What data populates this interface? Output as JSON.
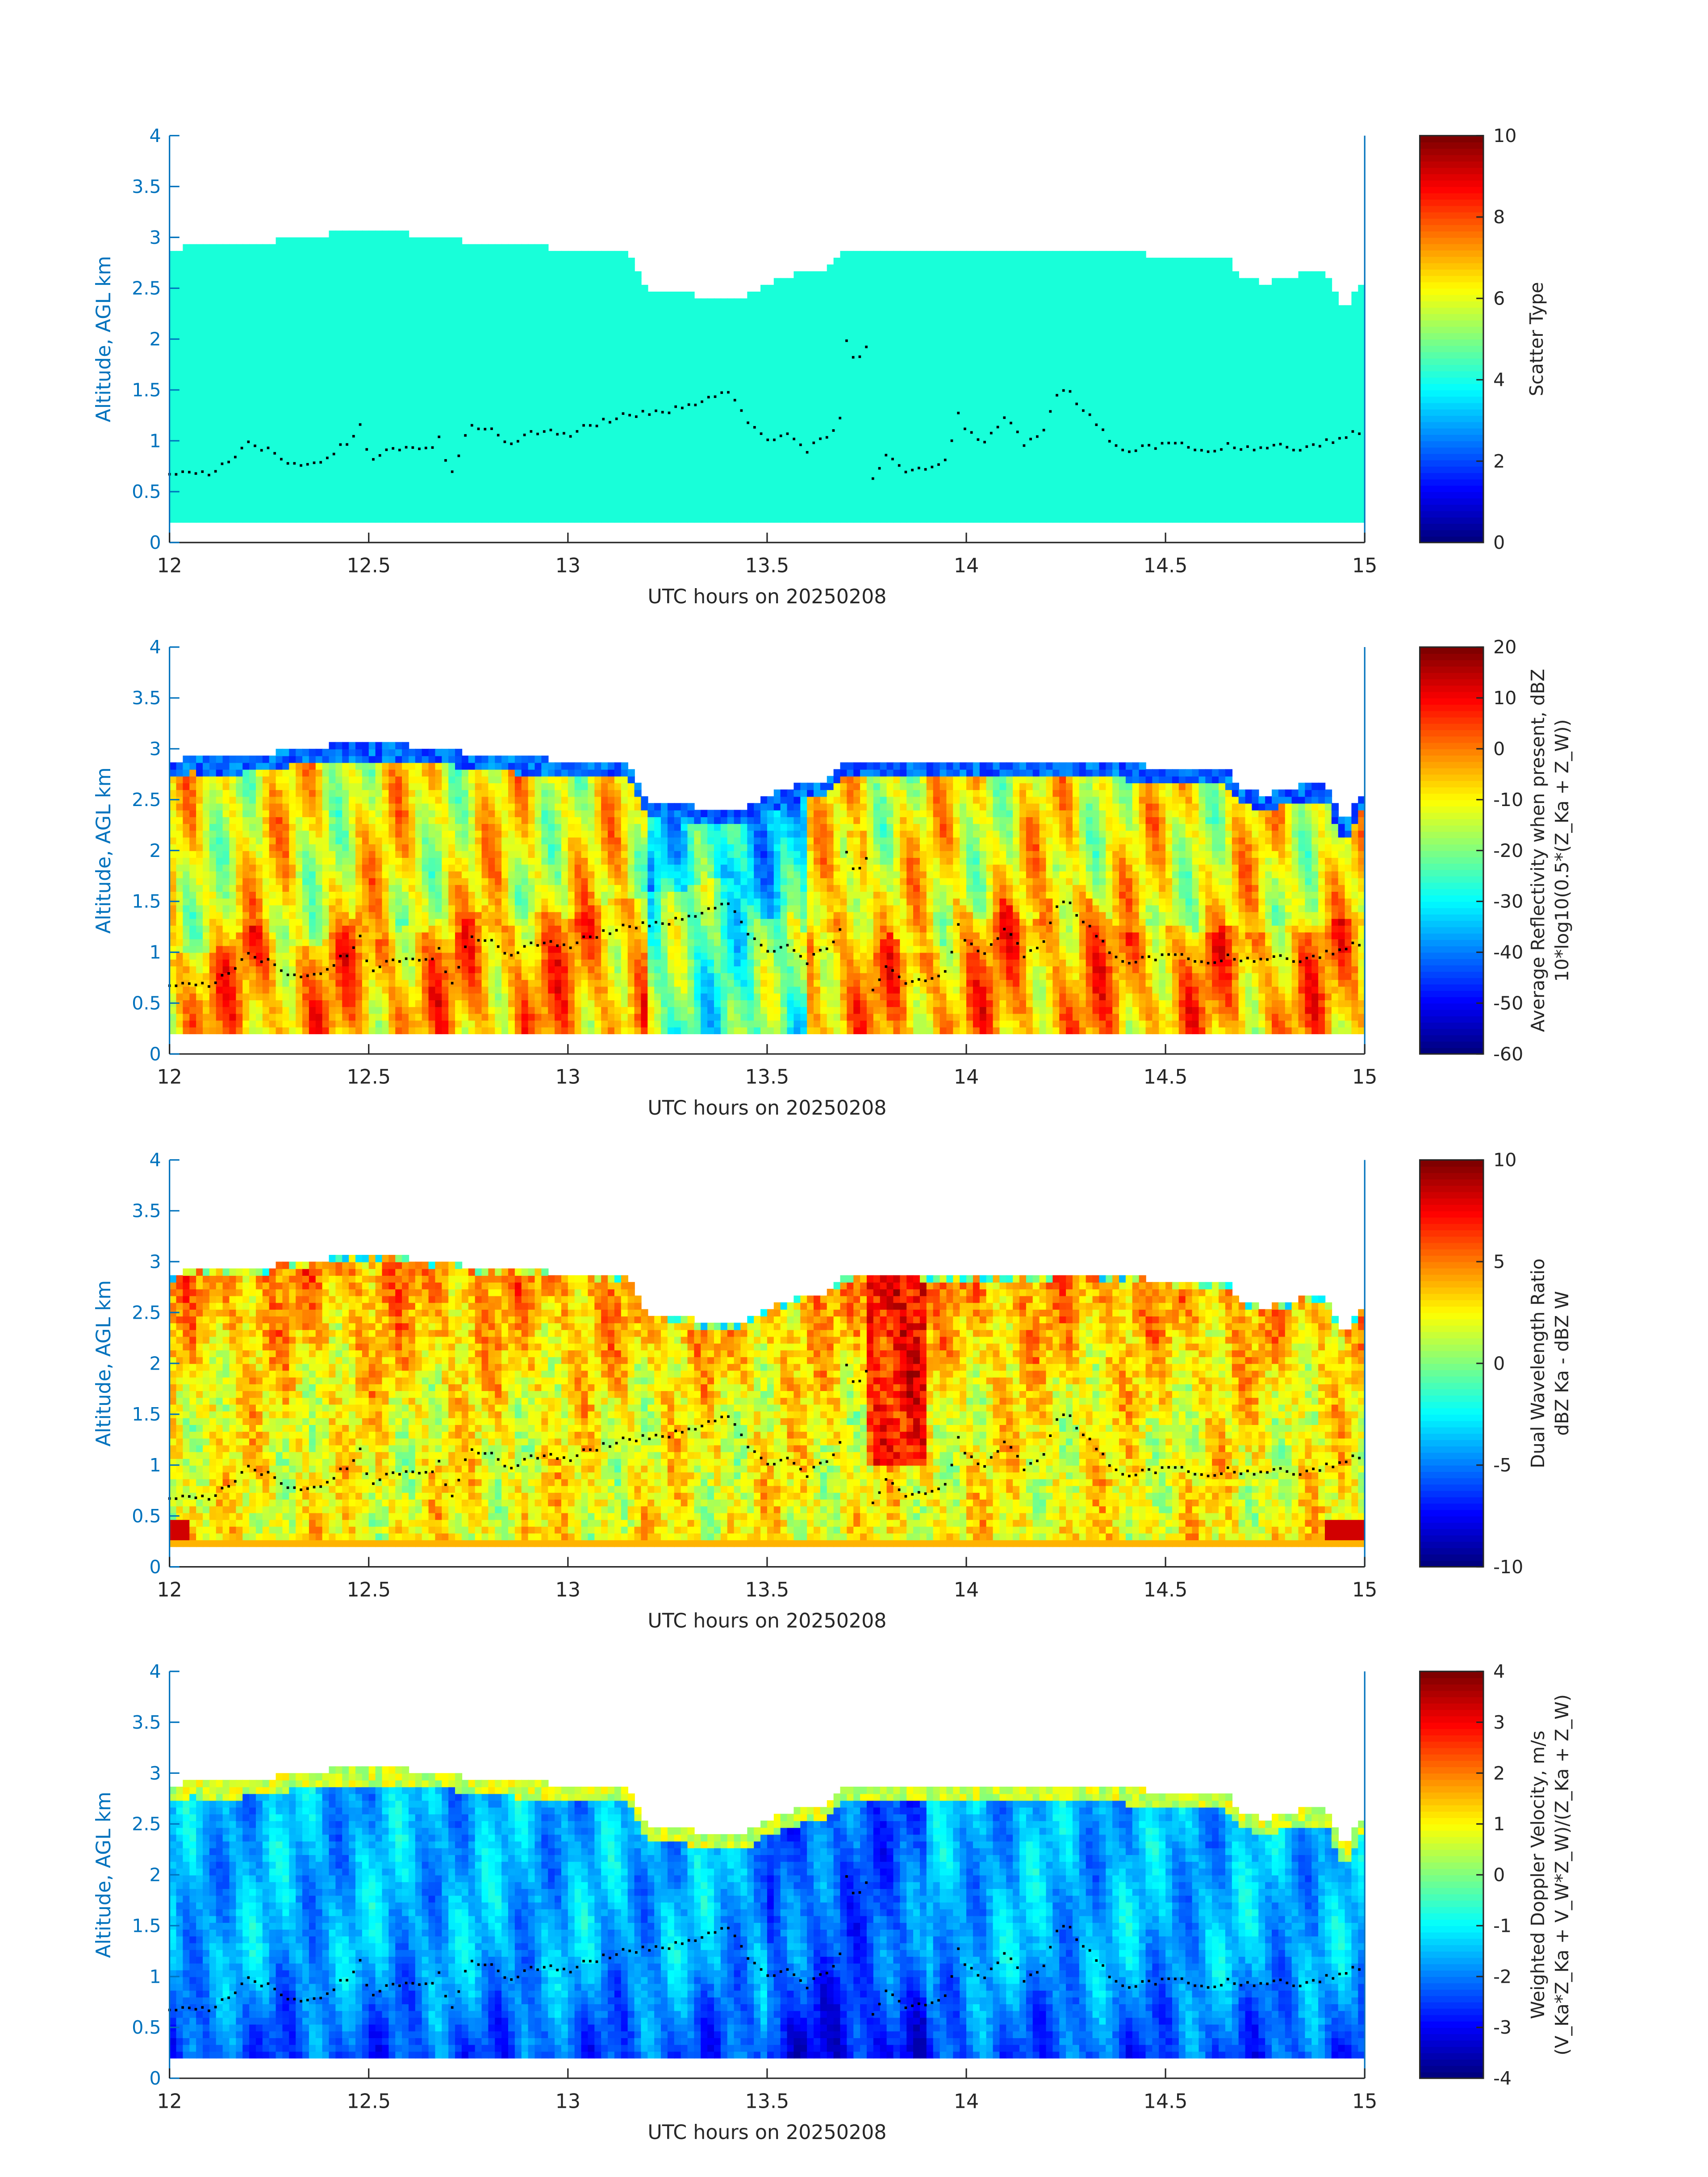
{
  "chart_data": [
    {
      "type": "heatmap",
      "xlabel": "UTC hours on 20250208",
      "ylabel": "Altitude, AGL km",
      "xlim": [
        12,
        15
      ],
      "ylim": [
        0,
        4
      ],
      "xticks": [
        "12",
        "12.5",
        "13",
        "13.5",
        "14",
        "14.5",
        "15"
      ],
      "yticks": [
        "0",
        "0.5",
        "1",
        "1.5",
        "2",
        "2.5",
        "3",
        "3.5",
        "4"
      ],
      "colorbar": {
        "label": "Scatter Type",
        "sublabel": "",
        "range": [
          0,
          10
        ],
        "ticks": [
          "0",
          "2",
          "4",
          "6",
          "8",
          "10"
        ]
      },
      "field": "scatter",
      "grid": false
    },
    {
      "type": "heatmap",
      "xlabel": "UTC hours on 20250208",
      "ylabel": "Altitude, AGL km",
      "xlim": [
        12,
        15
      ],
      "ylim": [
        0,
        4
      ],
      "xticks": [
        "12",
        "12.5",
        "13",
        "13.5",
        "14",
        "14.5",
        "15"
      ],
      "yticks": [
        "0",
        "0.5",
        "1",
        "1.5",
        "2",
        "2.5",
        "3",
        "3.5",
        "4"
      ],
      "colorbar": {
        "label": "Average Reflectivity when present, dBZ",
        "sublabel": "10*log10(0.5*(Z_Ka + Z_W))",
        "range": [
          -60,
          20
        ],
        "ticks": [
          "-60",
          "-50",
          "-40",
          "-30",
          "-20",
          "-10",
          "0",
          "10",
          "20"
        ]
      },
      "field": "reflectivity",
      "grid": false
    },
    {
      "type": "heatmap",
      "xlabel": "UTC hours on 20250208",
      "ylabel": "Altitude, AGL km",
      "xlim": [
        12,
        15
      ],
      "ylim": [
        0,
        4
      ],
      "xticks": [
        "12",
        "12.5",
        "13",
        "13.5",
        "14",
        "14.5",
        "15"
      ],
      "yticks": [
        "0",
        "0.5",
        "1",
        "1.5",
        "2",
        "2.5",
        "3",
        "3.5",
        "4"
      ],
      "colorbar": {
        "label": "Dual Wavelength Ratio",
        "sublabel": "dBZ Ka - dBZ W",
        "range": [
          -10,
          10
        ],
        "ticks": [
          "-10",
          "-5",
          "0",
          "5",
          "10"
        ]
      },
      "field": "dwr",
      "grid": false
    },
    {
      "type": "heatmap",
      "xlabel": "UTC hours on 20250208",
      "ylabel": "Altitude, AGL km",
      "xlim": [
        12,
        15
      ],
      "ylim": [
        0,
        4
      ],
      "xticks": [
        "12",
        "12.5",
        "13",
        "13.5",
        "14",
        "14.5",
        "15"
      ],
      "yticks": [
        "0",
        "0.5",
        "1",
        "1.5",
        "2",
        "2.5",
        "3",
        "3.5",
        "4"
      ],
      "colorbar": {
        "label": "Weighted Doppler Velocity, m/s",
        "sublabel": "(V_Ka*Z_Ka + V_W*Z_W)/(Z_Ka + Z_W)",
        "range": [
          -4,
          4
        ],
        "ticks": [
          "-4",
          "-3",
          "-2",
          "-1",
          "0",
          "1",
          "2",
          "3",
          "4"
        ]
      },
      "field": "velocity",
      "grid": false
    }
  ],
  "cloud_top_km": [
    [
      12.0,
      2.85
    ],
    [
      12.05,
      2.92
    ],
    [
      12.15,
      2.9
    ],
    [
      12.25,
      2.95
    ],
    [
      12.35,
      3.02
    ],
    [
      12.45,
      3.05
    ],
    [
      12.55,
      3.05
    ],
    [
      12.65,
      3.02
    ],
    [
      12.75,
      2.96
    ],
    [
      12.85,
      2.92
    ],
    [
      12.95,
      2.9
    ],
    [
      13.05,
      2.88
    ],
    [
      13.15,
      2.85
    ],
    [
      13.2,
      2.5
    ],
    [
      13.3,
      2.45
    ],
    [
      13.35,
      2.38
    ],
    [
      13.45,
      2.42
    ],
    [
      13.5,
      2.55
    ],
    [
      13.6,
      2.68
    ],
    [
      13.65,
      2.7
    ],
    [
      13.7,
      2.88
    ],
    [
      13.8,
      2.9
    ],
    [
      13.9,
      2.88
    ],
    [
      14.0,
      2.88
    ],
    [
      14.1,
      2.87
    ],
    [
      14.2,
      2.88
    ],
    [
      14.3,
      2.9
    ],
    [
      14.4,
      2.85
    ],
    [
      14.5,
      2.82
    ],
    [
      14.6,
      2.8
    ],
    [
      14.65,
      2.8
    ],
    [
      14.7,
      2.6
    ],
    [
      14.75,
      2.55
    ],
    [
      14.8,
      2.6
    ],
    [
      14.85,
      2.65
    ],
    [
      14.9,
      2.65
    ],
    [
      14.95,
      2.25
    ],
    [
      15.0,
      2.62
    ]
  ],
  "cloud_base_km": [
    [
      12.0,
      0.65
    ],
    [
      12.05,
      0.72
    ],
    [
      12.1,
      0.67
    ],
    [
      12.15,
      0.82
    ],
    [
      12.2,
      0.97
    ],
    [
      12.25,
      0.9
    ],
    [
      12.3,
      0.75
    ],
    [
      12.35,
      0.75
    ],
    [
      12.4,
      0.85
    ],
    [
      12.45,
      1.0
    ],
    [
      12.48,
      1.17
    ],
    [
      12.5,
      0.82
    ],
    [
      12.55,
      0.9
    ],
    [
      12.6,
      0.95
    ],
    [
      12.65,
      0.9
    ],
    [
      12.68,
      1.08
    ],
    [
      12.7,
      0.62
    ],
    [
      12.75,
      1.12
    ],
    [
      12.8,
      1.14
    ],
    [
      12.85,
      0.95
    ],
    [
      12.9,
      1.08
    ],
    [
      12.95,
      1.1
    ],
    [
      13.0,
      1.05
    ],
    [
      13.05,
      1.15
    ],
    [
      13.1,
      1.2
    ],
    [
      13.15,
      1.25
    ],
    [
      13.2,
      1.28
    ],
    [
      13.25,
      1.3
    ],
    [
      13.3,
      1.33
    ],
    [
      13.35,
      1.4
    ],
    [
      13.4,
      1.48
    ],
    [
      13.45,
      1.2
    ],
    [
      13.5,
      1.0
    ],
    [
      13.55,
      1.1
    ],
    [
      13.6,
      0.9
    ],
    [
      13.65,
      1.05
    ],
    [
      13.68,
      1.1
    ],
    [
      13.7,
      2.02
    ],
    [
      13.72,
      1.75
    ],
    [
      13.75,
      1.95
    ],
    [
      13.76,
      0.58
    ],
    [
      13.8,
      0.9
    ],
    [
      13.85,
      0.7
    ],
    [
      13.9,
      0.72
    ],
    [
      13.95,
      0.8
    ],
    [
      13.98,
      1.3
    ],
    [
      14.0,
      1.1
    ],
    [
      14.05,
      1.0
    ],
    [
      14.1,
      1.25
    ],
    [
      14.15,
      0.95
    ],
    [
      14.2,
      1.15
    ],
    [
      14.23,
      1.48
    ],
    [
      14.25,
      1.5
    ],
    [
      14.3,
      1.3
    ],
    [
      14.35,
      1.05
    ],
    [
      14.4,
      0.9
    ],
    [
      14.45,
      0.95
    ],
    [
      14.5,
      0.95
    ],
    [
      14.55,
      0.95
    ],
    [
      14.6,
      0.9
    ],
    [
      14.65,
      0.95
    ],
    [
      14.7,
      0.92
    ],
    [
      14.75,
      0.92
    ],
    [
      14.8,
      0.95
    ],
    [
      14.85,
      0.92
    ],
    [
      14.9,
      0.98
    ],
    [
      14.95,
      1.05
    ],
    [
      15.0,
      1.1
    ]
  ],
  "echo_bottom_km": 0.2
}
